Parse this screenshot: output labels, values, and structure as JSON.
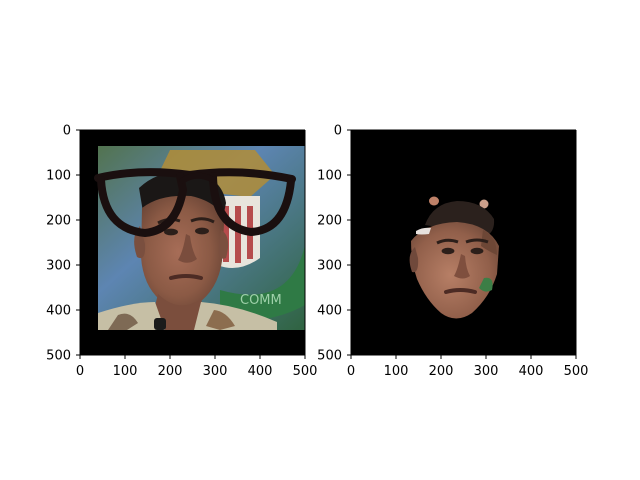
{
  "figure": {
    "background": "#ffffff",
    "panel_count": 2
  },
  "panels": [
    {
      "id": "left",
      "subject": "face-with-glasses",
      "x_ticks": [
        "0",
        "100",
        "200",
        "300",
        "400",
        "500"
      ],
      "y_ticks": [
        "0",
        "100",
        "200",
        "300",
        "400",
        "500"
      ],
      "xlim": [
        0,
        500
      ],
      "ylim": [
        500,
        0
      ]
    },
    {
      "id": "right",
      "subject": "segmented-face-mask",
      "x_ticks": [
        "0",
        "100",
        "200",
        "300",
        "400",
        "500"
      ],
      "y_ticks": [
        "0",
        "100",
        "200",
        "300",
        "400",
        "500"
      ],
      "xlim": [
        0,
        500
      ],
      "ylim": [
        500,
        0
      ]
    }
  ],
  "palette": {
    "black": "#000000",
    "skin": "#8b5a45",
    "skin_dark": "#6b4536",
    "hair": "#1a1716",
    "shirt": "#c6bfa5",
    "flag_red": "#b64c4d",
    "flag_white": "#e8e4dc",
    "sky_blue": "#5b7eb3",
    "emblem_gold": "#b18d37",
    "background_green": "#3d6d4a"
  }
}
